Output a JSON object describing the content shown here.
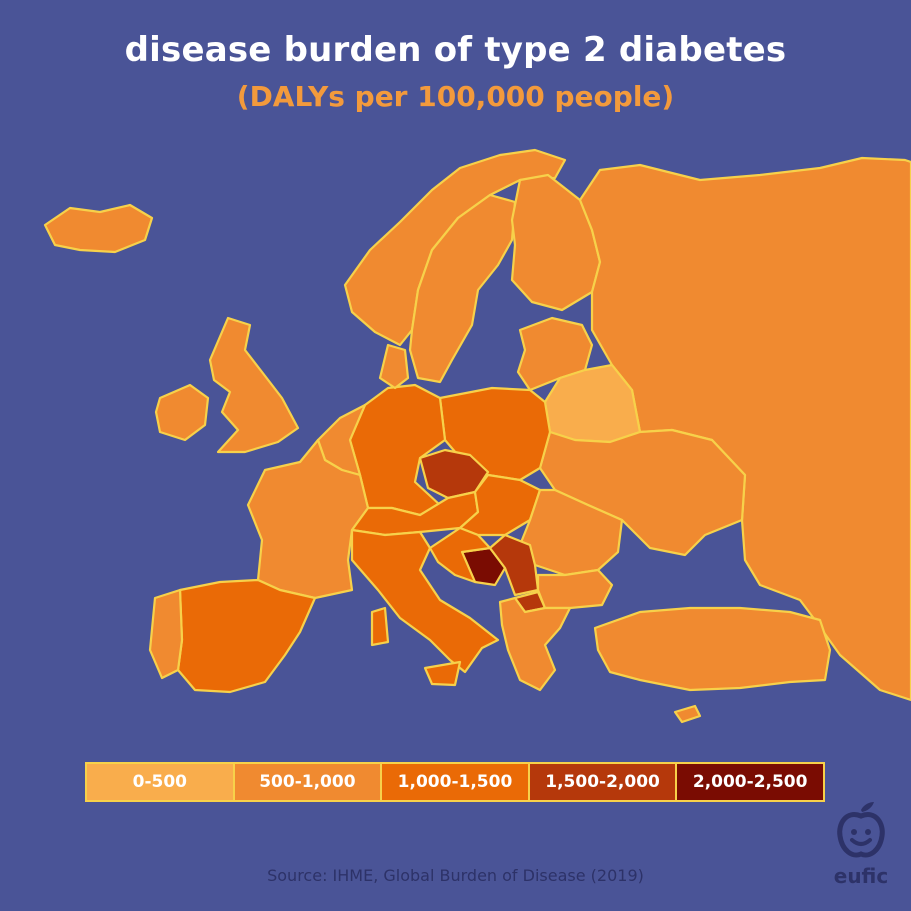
{
  "title": "disease burden of type 2 diabetes",
  "subtitle": "(DALYs per 100,000 people)",
  "legend": [
    {
      "label": "0-500",
      "color": "#f9ad4c"
    },
    {
      "label": "500-1,000",
      "color": "#f08a30"
    },
    {
      "label": "1,000-1,500",
      "color": "#ea6a06"
    },
    {
      "label": "1,500-2,000",
      "color": "#b5380b"
    },
    {
      "label": "2,000-2,500",
      "color": "#7a0c02"
    }
  ],
  "source": "Source: IHME, Global Burden of Disease (2019)",
  "logo": {
    "text": "eufic"
  },
  "colors": {
    "background": "#4a5497",
    "border": "#f7d14a",
    "title": "#ffffff",
    "subtitle": "#f39a3c"
  },
  "regions": [
    {
      "id": "iceland",
      "class": 1
    },
    {
      "id": "ireland",
      "class": 1
    },
    {
      "id": "united-kingdom",
      "class": 1
    },
    {
      "id": "norway",
      "class": 1
    },
    {
      "id": "sweden",
      "class": 1
    },
    {
      "id": "finland",
      "class": 1
    },
    {
      "id": "russia",
      "class": 1
    },
    {
      "id": "baltics",
      "class": 1
    },
    {
      "id": "belarus",
      "class": 0
    },
    {
      "id": "ukraine",
      "class": 1
    },
    {
      "id": "poland",
      "class": 2
    },
    {
      "id": "germany",
      "class": 2
    },
    {
      "id": "czechia",
      "class": 3
    },
    {
      "id": "france",
      "class": 1
    },
    {
      "id": "benelux",
      "class": 1
    },
    {
      "id": "denmark",
      "class": 1
    },
    {
      "id": "switzerland-austria",
      "class": 2
    },
    {
      "id": "hungary-slovakia",
      "class": 2
    },
    {
      "id": "romania-moldova",
      "class": 1
    },
    {
      "id": "spain",
      "class": 2
    },
    {
      "id": "portugal",
      "class": 1
    },
    {
      "id": "italy",
      "class": 2
    },
    {
      "id": "bosnia",
      "class": 4
    },
    {
      "id": "serbia",
      "class": 3
    },
    {
      "id": "north-macedonia",
      "class": 3
    },
    {
      "id": "bulgaria",
      "class": 1
    },
    {
      "id": "greece-albania",
      "class": 1
    },
    {
      "id": "turkey",
      "class": 1
    },
    {
      "id": "cyprus",
      "class": 1
    }
  ]
}
